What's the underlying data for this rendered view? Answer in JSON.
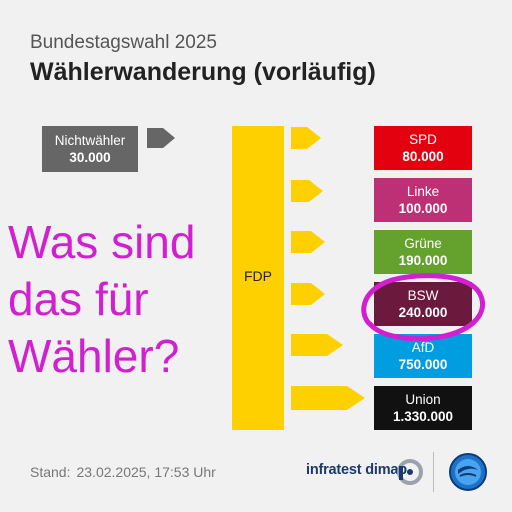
{
  "header": {
    "subtitle": "Bundestagswahl 2025",
    "title": "Wählerwanderung (vorläufig)"
  },
  "source": {
    "label": "Nichtwähler",
    "value": "30.000",
    "color": "#666666"
  },
  "center": {
    "label": "FDP",
    "color": "#ffd000"
  },
  "destinations": [
    {
      "label": "SPD",
      "value": "80.000",
      "color": "#e3000f"
    },
    {
      "label": "Linke",
      "value": "100.000",
      "color": "#be3075"
    },
    {
      "label": "Grüne",
      "value": "190.000",
      "color": "#64a12d"
    },
    {
      "label": "BSW",
      "value": "240.000",
      "color": "#6b1a3d"
    },
    {
      "label": "AfD",
      "value": "750.000",
      "color": "#009ee0"
    },
    {
      "label": "Union",
      "value": "1.330.000",
      "color": "#111111"
    }
  ],
  "overlay": {
    "lines": [
      "Was sind",
      "das für",
      "Wähler?"
    ],
    "color": "#d020d0"
  },
  "footer": {
    "stand_label": "Stand:",
    "stand_value": "23.02.2025, 17:53 Uhr",
    "brand": "infratest dimap"
  }
}
